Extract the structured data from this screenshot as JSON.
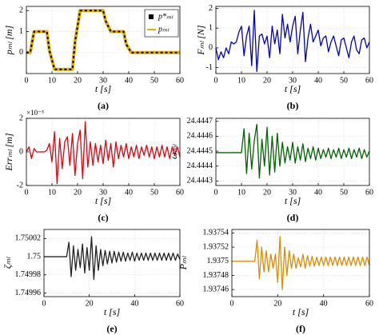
{
  "chart_data": [
    {
      "type": "line",
      "caption": "(a)",
      "xlabel": "t [s]",
      "ylabel": "pₘₗ [m]",
      "grid": true,
      "legend": "upper right",
      "xlim": [
        0,
        60
      ],
      "xticks": [
        0,
        10,
        20,
        30,
        40,
        50,
        60
      ],
      "ylim": [
        -1,
        2.2
      ],
      "yticks": [
        0,
        1,
        2
      ],
      "x": [
        0,
        1.5,
        3,
        8,
        9,
        11,
        18,
        19,
        21,
        30,
        31,
        33,
        38,
        39,
        41,
        60
      ],
      "series": [
        {
          "name": "p*ₘₗ",
          "color": "#000000",
          "style": "dashed",
          "values": [
            0,
            0,
            1,
            1,
            0.1,
            -0.8,
            -0.8,
            0.5,
            2,
            2,
            1.5,
            1,
            1,
            0.4,
            0,
            0
          ]
        },
        {
          "name": "pₘₗ",
          "color": "#e6b000",
          "style": "solid",
          "values": [
            0,
            0,
            1,
            1,
            0.1,
            -0.8,
            -0.8,
            0.5,
            2,
            2,
            1.5,
            1,
            1,
            0.4,
            0,
            0
          ]
        }
      ]
    },
    {
      "type": "line",
      "caption": "(b)",
      "xlabel": "t [s]",
      "ylabel": "Fₘₗ [N]",
      "grid": true,
      "xlim": [
        0,
        60
      ],
      "xticks": [
        0,
        10,
        20,
        30,
        40,
        50,
        60
      ],
      "ylim": [
        -1.3,
        2.1
      ],
      "yticks": [
        -1,
        0,
        1,
        2
      ],
      "x": [
        0,
        1,
        2,
        3,
        4,
        5,
        6,
        7,
        8,
        9,
        10,
        11,
        12,
        13,
        14,
        15,
        16,
        17,
        18,
        19,
        20,
        21,
        22,
        23,
        24,
        25,
        26,
        27,
        28,
        29,
        30,
        31,
        32,
        33,
        34,
        35,
        36,
        37,
        38,
        39,
        40,
        41,
        42,
        43,
        44,
        45,
        46,
        47,
        48,
        49,
        50,
        51,
        52,
        53,
        54,
        55,
        56,
        57,
        58,
        59,
        60
      ],
      "series": [
        {
          "color": "#0000cc",
          "values": [
            0,
            -0.6,
            -0.2,
            -0.5,
            0,
            -0.3,
            0.3,
            0.2,
            0.3,
            0.8,
            1.1,
            -0.4,
            0.6,
            1.1,
            -0.9,
            1.9,
            -1.2,
            0.6,
            0.7,
            0.2,
            0.6,
            -0.5,
            1.1,
            0.2,
            0.9,
            -0.3,
            1.7,
            0.5,
            1.2,
            0.3,
            1.1,
            1.6,
            -0.3,
            0.9,
            1.8,
            -0.7,
            0.5,
            1.2,
            0.3,
            0.6,
            0.9,
            0.1,
            0.5,
            0.6,
            -0.2,
            0.3,
            0.6,
            0.1,
            -0.4,
            0.4,
            0.5,
            0,
            -0.5,
            0.3,
            0.6,
            -0.1,
            -0.3,
            0.4,
            0.5,
            0,
            0.3
          ]
        }
      ]
    },
    {
      "type": "line",
      "caption": "(c)",
      "xlabel": "t [s]",
      "ylabel": "Errₘₗ [m]",
      "y_offset_label": "×10⁻⁵",
      "grid": true,
      "xlim": [
        0,
        60
      ],
      "xticks": [
        0,
        10,
        20,
        30,
        40,
        50,
        60
      ],
      "ylim": [
        -2,
        2
      ],
      "yticks": [
        -2,
        0,
        2
      ],
      "x": [
        0,
        1,
        2,
        3,
        4,
        5,
        6,
        7,
        8,
        9,
        10,
        11,
        12,
        13,
        14,
        15,
        16,
        17,
        18,
        19,
        20,
        21,
        22,
        23,
        24,
        25,
        26,
        27,
        28,
        29,
        30,
        31,
        32,
        33,
        34,
        35,
        36,
        37,
        38,
        39,
        40,
        41,
        42,
        43,
        44,
        45,
        46,
        47,
        48,
        49,
        50,
        51,
        52,
        53,
        54,
        55,
        56,
        57,
        58,
        59,
        60
      ],
      "series": [
        {
          "color": "#e8000b",
          "values": [
            0,
            0.3,
            -0.4,
            0.2,
            0,
            0,
            0,
            0,
            0.1,
            0.5,
            -0.6,
            1.2,
            -1.9,
            0.8,
            -1,
            0.6,
            0.9,
            -0.8,
            1.1,
            -1.4,
            0.5,
            1.3,
            -1.6,
            1.8,
            -0.9,
            0.6,
            -0.8,
            0.5,
            -0.6,
            0.4,
            -0.7,
            0.7,
            -0.5,
            0.5,
            -0.9,
            0.6,
            -0.4,
            0.4,
            -0.3,
            0.5,
            -0.4,
            0.3,
            -0.3,
            0.4,
            -0.4,
            0.3,
            -0.2,
            0.4,
            -0.3,
            0.3,
            -0.4,
            0.3,
            -0.3,
            0.4,
            -0.3,
            0.3,
            -0.4,
            0.3,
            -0.2,
            0.3,
            -0.3
          ]
        }
      ]
    },
    {
      "type": "line",
      "caption": "(d)",
      "xlabel": "t [s]",
      "ylabel": "ωₘₗ",
      "grid": true,
      "xlim": [
        0,
        60
      ],
      "xticks": [
        0,
        10,
        20,
        30,
        40,
        50,
        60
      ],
      "ylim": [
        24.44427,
        24.44472
      ],
      "yticks": [
        24.4443,
        24.4444,
        24.4445,
        24.4446,
        24.4447
      ],
      "x": [
        0,
        1,
        2,
        3,
        4,
        5,
        6,
        7,
        8,
        9,
        10,
        11,
        12,
        13,
        14,
        15,
        16,
        17,
        18,
        19,
        20,
        21,
        22,
        23,
        24,
        25,
        26,
        27,
        28,
        29,
        30,
        31,
        32,
        33,
        34,
        35,
        36,
        37,
        38,
        39,
        40,
        41,
        42,
        43,
        44,
        45,
        46,
        47,
        48,
        49,
        50,
        51,
        52,
        53,
        54,
        55,
        56,
        57,
        58,
        59,
        60
      ],
      "series": [
        {
          "color": "#006400",
          "values": [
            24.44449,
            24.44449,
            24.44449,
            24.44449,
            24.44449,
            24.44449,
            24.44449,
            24.44449,
            24.44449,
            24.44449,
            24.44449,
            24.44465,
            24.44435,
            24.44462,
            24.44438,
            24.44457,
            24.44468,
            24.44432,
            24.44458,
            24.4444,
            24.44466,
            24.44434,
            24.4446,
            24.44436,
            24.44462,
            24.4444,
            24.44456,
            24.44442,
            24.44453,
            24.44444,
            24.44456,
            24.44442,
            24.44453,
            24.44444,
            24.44455,
            24.44443,
            24.44452,
            24.44445,
            24.44453,
            24.44444,
            24.44452,
            24.44445,
            24.44451,
            24.44446,
            24.44452,
            24.44445,
            24.44451,
            24.44446,
            24.44452,
            24.44445,
            24.44451,
            24.44446,
            24.44452,
            24.44445,
            24.44451,
            24.44446,
            24.44452,
            24.44445,
            24.44451,
            24.44446,
            24.4445
          ]
        }
      ]
    },
    {
      "type": "line",
      "caption": "(e)",
      "xlabel": "t [s]",
      "ylabel": "ζₘₗ",
      "grid": true,
      "xlim": [
        0,
        60
      ],
      "xticks": [
        0,
        20,
        40,
        60
      ],
      "ylim": [
        1.749956,
        1.75003
      ],
      "yticks": [
        1.74996,
        1.74998,
        1.75,
        1.75002
      ],
      "x": [
        0,
        1,
        2,
        3,
        4,
        5,
        6,
        7,
        8,
        9,
        10,
        11,
        12,
        13,
        14,
        15,
        16,
        17,
        18,
        19,
        20,
        21,
        22,
        23,
        24,
        25,
        26,
        27,
        28,
        29,
        30,
        31,
        32,
        33,
        34,
        35,
        36,
        37,
        38,
        39,
        40,
        41,
        42,
        43,
        44,
        45,
        46,
        47,
        48,
        49,
        50,
        51,
        52,
        53,
        54,
        55,
        56,
        57,
        58,
        59,
        60
      ],
      "series": [
        {
          "color": "#222222",
          "values": [
            1.75,
            1.75,
            1.75,
            1.75,
            1.75,
            1.75,
            1.75,
            1.75,
            1.75,
            1.75,
            1.75,
            1.750016,
            1.749978,
            1.750012,
            1.749985,
            1.750008,
            1.749988,
            1.750014,
            1.749982,
            1.75001,
            1.749985,
            1.750022,
            1.749975,
            1.750012,
            1.749985,
            1.750008,
            1.74999,
            1.750007,
            1.749992,
            1.750006,
            1.749993,
            1.750006,
            1.749994,
            1.750005,
            1.749995,
            1.750005,
            1.749995,
            1.750004,
            1.749996,
            1.750005,
            1.749995,
            1.750004,
            1.749996,
            1.750004,
            1.749996,
            1.750004,
            1.749996,
            1.750004,
            1.749996,
            1.750004,
            1.749996,
            1.750004,
            1.749996,
            1.750004,
            1.749996,
            1.750004,
            1.749996,
            1.750004,
            1.749996,
            1.750003,
            1.749997
          ]
        }
      ]
    },
    {
      "type": "line",
      "caption": "(f)",
      "xlabel": "t [s]",
      "ylabel": "Pₘₗ",
      "grid": true,
      "xlim": [
        0,
        60
      ],
      "xticks": [
        0,
        20,
        40,
        60
      ],
      "ylim": [
        1.93745,
        1.937545
      ],
      "yticks": [
        1.93746,
        1.93748,
        1.9375,
        1.93752,
        1.93754
      ],
      "x": [
        0,
        1,
        2,
        3,
        4,
        5,
        6,
        7,
        8,
        9,
        10,
        11,
        12,
        13,
        14,
        15,
        16,
        17,
        18,
        19,
        20,
        21,
        22,
        23,
        24,
        25,
        26,
        27,
        28,
        29,
        30,
        31,
        32,
        33,
        34,
        35,
        36,
        37,
        38,
        39,
        40,
        41,
        42,
        43,
        44,
        45,
        46,
        47,
        48,
        49,
        50,
        51,
        52,
        53,
        54,
        55,
        56,
        57,
        58,
        59,
        60
      ],
      "series": [
        {
          "color": "#e08a00",
          "values": [
            1.9375,
            1.9375,
            1.9375,
            1.9375,
            1.9375,
            1.9375,
            1.9375,
            1.9375,
            1.9375,
            1.9375,
            1.9375,
            1.93753,
            1.937475,
            1.93752,
            1.937485,
            1.937515,
            1.937485,
            1.93751,
            1.93749,
            1.93751,
            1.93747,
            1.937535,
            1.93746,
            1.93752,
            1.93748,
            1.937515,
            1.93749,
            1.93751,
            1.93749,
            1.937505,
            1.937492,
            1.93751,
            1.93749,
            1.937508,
            1.937493,
            1.937507,
            1.937493,
            1.937506,
            1.937494,
            1.937506,
            1.937494,
            1.937506,
            1.937494,
            1.937506,
            1.937494,
            1.937506,
            1.937494,
            1.937506,
            1.937494,
            1.937506,
            1.937494,
            1.937506,
            1.937494,
            1.937506,
            1.937494,
            1.937506,
            1.937494,
            1.937506,
            1.937494,
            1.937506,
            1.937494
          ]
        }
      ]
    }
  ]
}
